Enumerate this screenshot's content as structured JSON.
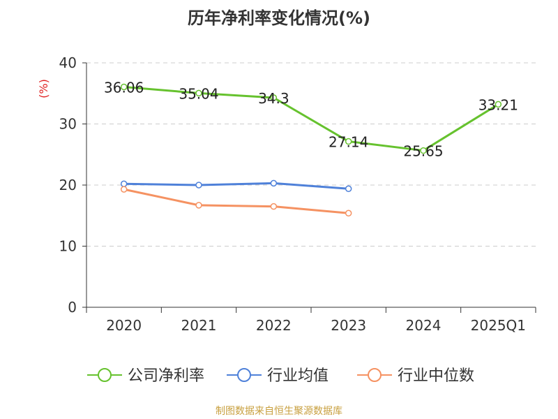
{
  "chart_data": {
    "type": "line",
    "title": "历年净利率变化情况(%)",
    "ylabel": "(%)",
    "xlabel": "",
    "categories": [
      "2020",
      "2021",
      "2022",
      "2023",
      "2024",
      "2025Q1"
    ],
    "yticks": [
      "0",
      "10",
      "20",
      "30",
      "40"
    ],
    "ylim": [
      0,
      40
    ],
    "grid": true,
    "legend_position": "bottom",
    "series": [
      {
        "name": "公司净利率",
        "color": "#66c22e",
        "values": [
          36.06,
          35.04,
          34.3,
          27.14,
          25.65,
          33.21
        ],
        "labels": [
          "36.06",
          "35.04",
          "34.3",
          "27.14",
          "25.65",
          "33.21"
        ]
      },
      {
        "name": "行业均值",
        "color": "#4f81d9",
        "values": [
          20.2,
          20.0,
          20.3,
          19.4,
          null,
          null
        ]
      },
      {
        "name": "行业中位数",
        "color": "#f59262",
        "values": [
          19.3,
          16.7,
          16.5,
          15.4,
          null,
          null
        ]
      }
    ]
  },
  "source_note": "制图数据来自恒生聚源数据库",
  "colors": {
    "ylabel": "#e02020",
    "grid": "#cccccc",
    "axis": "#333333"
  }
}
